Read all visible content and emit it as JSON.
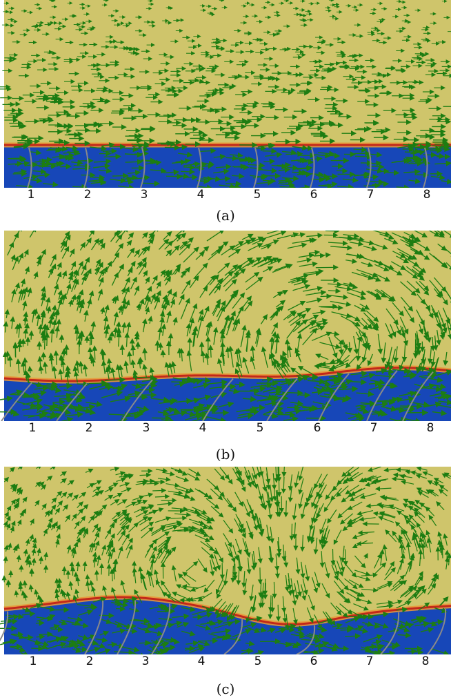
{
  "figure": {
    "colors": {
      "upper_fluid": "#cfc56b",
      "lower_fluid": "#1747b8",
      "interface_red": "#c2281a",
      "interface_orange": "#e8973a",
      "arrows": "#1d7d12",
      "probe_lines": "#8a8a8a"
    },
    "panels": [
      {
        "caption": "(a)",
        "probe_labels": [
          "1",
          "2",
          "3",
          "4",
          "5",
          "6",
          "7",
          "8"
        ],
        "interface_shape": "flat",
        "flow_pattern": "uniform rightward, weak"
      },
      {
        "caption": "(b)",
        "probe_labels": [
          "1",
          "2",
          "3",
          "4",
          "5",
          "6",
          "7",
          "8"
        ],
        "interface_shape": "single wave crest on right",
        "flow_pattern": "large clockwise vortex"
      },
      {
        "caption": "(c)",
        "probe_labels": [
          "1",
          "2",
          "3",
          "4",
          "5",
          "6",
          "7",
          "8"
        ],
        "interface_shape": "wave with trough in middle",
        "flow_pattern": "counter-rotating vortex pair"
      }
    ]
  }
}
